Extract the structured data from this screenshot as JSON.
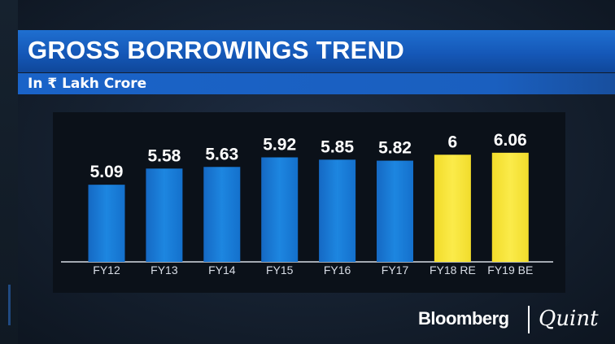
{
  "header": {
    "title": "GROSS BORROWINGS TREND",
    "subtitle": "In ₹ Lakh Crore"
  },
  "branding": {
    "bloomberg": "Bloomberg",
    "quint": "Quint"
  },
  "colors": {
    "bar_blue": "#1a7fd8",
    "bar_yellow": "#f7e53c",
    "title_bar": "#1558b8",
    "panel": "#0b1119"
  },
  "chart_data": {
    "type": "bar",
    "title": "GROSS BORROWINGS TREND",
    "subtitle": "In ₹ Lakh Crore",
    "categories": [
      "FY12",
      "FY13",
      "FY14",
      "FY15",
      "FY16",
      "FY17",
      "FY18 RE",
      "FY19 BE"
    ],
    "values": [
      5.09,
      5.58,
      5.63,
      5.92,
      5.85,
      5.82,
      6,
      6.06
    ],
    "value_labels": [
      "5.09",
      "5.58",
      "5.63",
      "5.92",
      "5.85",
      "5.82",
      "6",
      "6.06"
    ],
    "bar_colors": [
      "#1a7fd8",
      "#1a7fd8",
      "#1a7fd8",
      "#1a7fd8",
      "#1a7fd8",
      "#1a7fd8",
      "#f7e53c",
      "#f7e53c"
    ],
    "ylim": [
      2.75,
      6.5
    ],
    "grid": false,
    "legend": "none"
  }
}
